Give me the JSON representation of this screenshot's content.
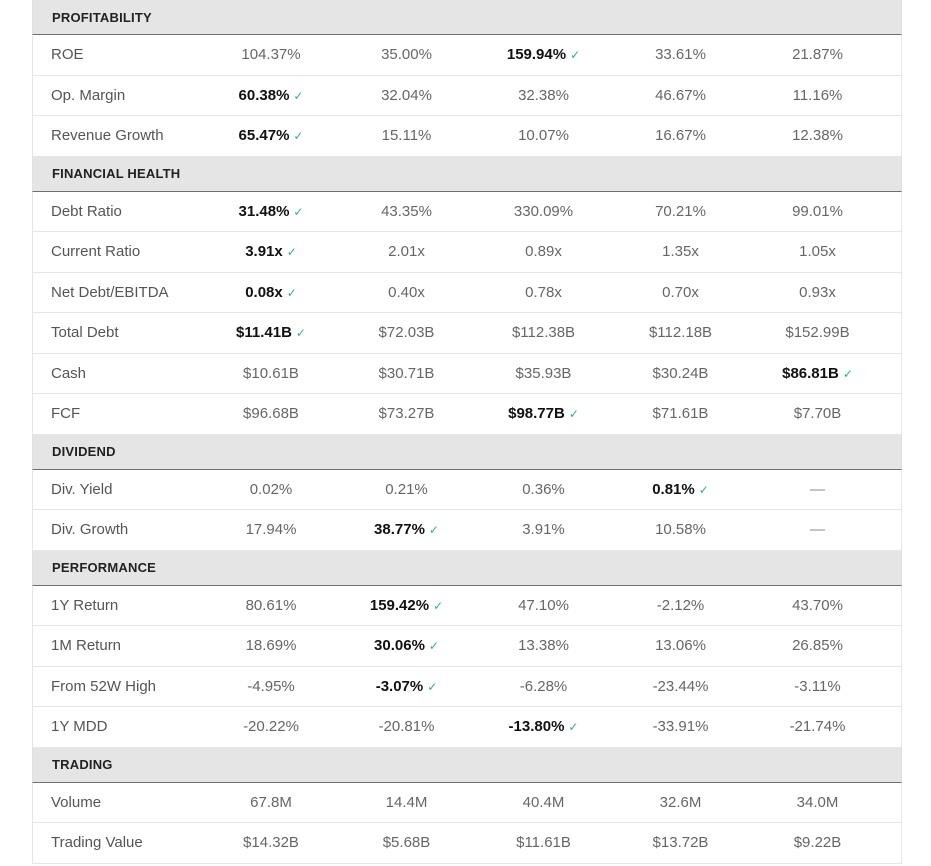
{
  "sections": [
    {
      "title": "PROFITABILITY",
      "rows": [
        {
          "label": "ROE",
          "values": [
            "104.37%",
            "35.00%",
            "159.94%",
            "33.61%",
            "21.87%"
          ],
          "best": 2
        },
        {
          "label": "Op. Margin",
          "values": [
            "60.38%",
            "32.04%",
            "32.38%",
            "46.67%",
            "11.16%"
          ],
          "best": 0
        },
        {
          "label": "Revenue Growth",
          "values": [
            "65.47%",
            "15.11%",
            "10.07%",
            "16.67%",
            "12.38%"
          ],
          "best": 0
        }
      ]
    },
    {
      "title": "FINANCIAL HEALTH",
      "rows": [
        {
          "label": "Debt Ratio",
          "values": [
            "31.48%",
            "43.35%",
            "330.09%",
            "70.21%",
            "99.01%"
          ],
          "best": 0
        },
        {
          "label": "Current Ratio",
          "values": [
            "3.91x",
            "2.01x",
            "0.89x",
            "1.35x",
            "1.05x"
          ],
          "best": 0
        },
        {
          "label": "Net Debt/EBITDA",
          "values": [
            "0.08x",
            "0.40x",
            "0.78x",
            "0.70x",
            "0.93x"
          ],
          "best": 0
        },
        {
          "label": "Total Debt",
          "values": [
            "$11.41B",
            "$72.03B",
            "$112.38B",
            "$112.18B",
            "$152.99B"
          ],
          "best": 0
        },
        {
          "label": "Cash",
          "values": [
            "$10.61B",
            "$30.71B",
            "$35.93B",
            "$30.24B",
            "$86.81B"
          ],
          "best": 4
        },
        {
          "label": "FCF",
          "values": [
            "$96.68B",
            "$73.27B",
            "$98.77B",
            "$71.61B",
            "$7.70B"
          ],
          "best": 2
        }
      ]
    },
    {
      "title": "DIVIDEND",
      "rows": [
        {
          "label": "Div. Yield",
          "values": [
            "0.02%",
            "0.21%",
            "0.36%",
            "0.81%",
            "—"
          ],
          "best": 3
        },
        {
          "label": "Div. Growth",
          "values": [
            "17.94%",
            "38.77%",
            "3.91%",
            "10.58%",
            "—"
          ],
          "best": 1
        }
      ]
    },
    {
      "title": "PERFORMANCE",
      "rows": [
        {
          "label": "1Y Return",
          "values": [
            "80.61%",
            "159.42%",
            "47.10%",
            "-2.12%",
            "43.70%"
          ],
          "best": 1
        },
        {
          "label": "1M Return",
          "values": [
            "18.69%",
            "30.06%",
            "13.38%",
            "13.06%",
            "26.85%"
          ],
          "best": 1
        },
        {
          "label": "From 52W High",
          "values": [
            "-4.95%",
            "-3.07%",
            "-6.28%",
            "-23.44%",
            "-3.11%"
          ],
          "best": 1
        },
        {
          "label": "1Y MDD",
          "values": [
            "-20.22%",
            "-20.81%",
            "-13.80%",
            "-33.91%",
            "-21.74%"
          ],
          "best": 2
        }
      ]
    },
    {
      "title": "TRADING",
      "rows": [
        {
          "label": "Volume",
          "values": [
            "67.8M",
            "14.4M",
            "40.4M",
            "32.6M",
            "34.0M"
          ],
          "best": -1
        },
        {
          "label": "Trading Value",
          "values": [
            "$14.32B",
            "$5.68B",
            "$11.61B",
            "$13.72B",
            "$9.22B"
          ],
          "best": -1
        }
      ]
    }
  ],
  "best_marker": "✓",
  "colors": {
    "check": "#2db37a",
    "section_bg": "#e5e5e5"
  }
}
